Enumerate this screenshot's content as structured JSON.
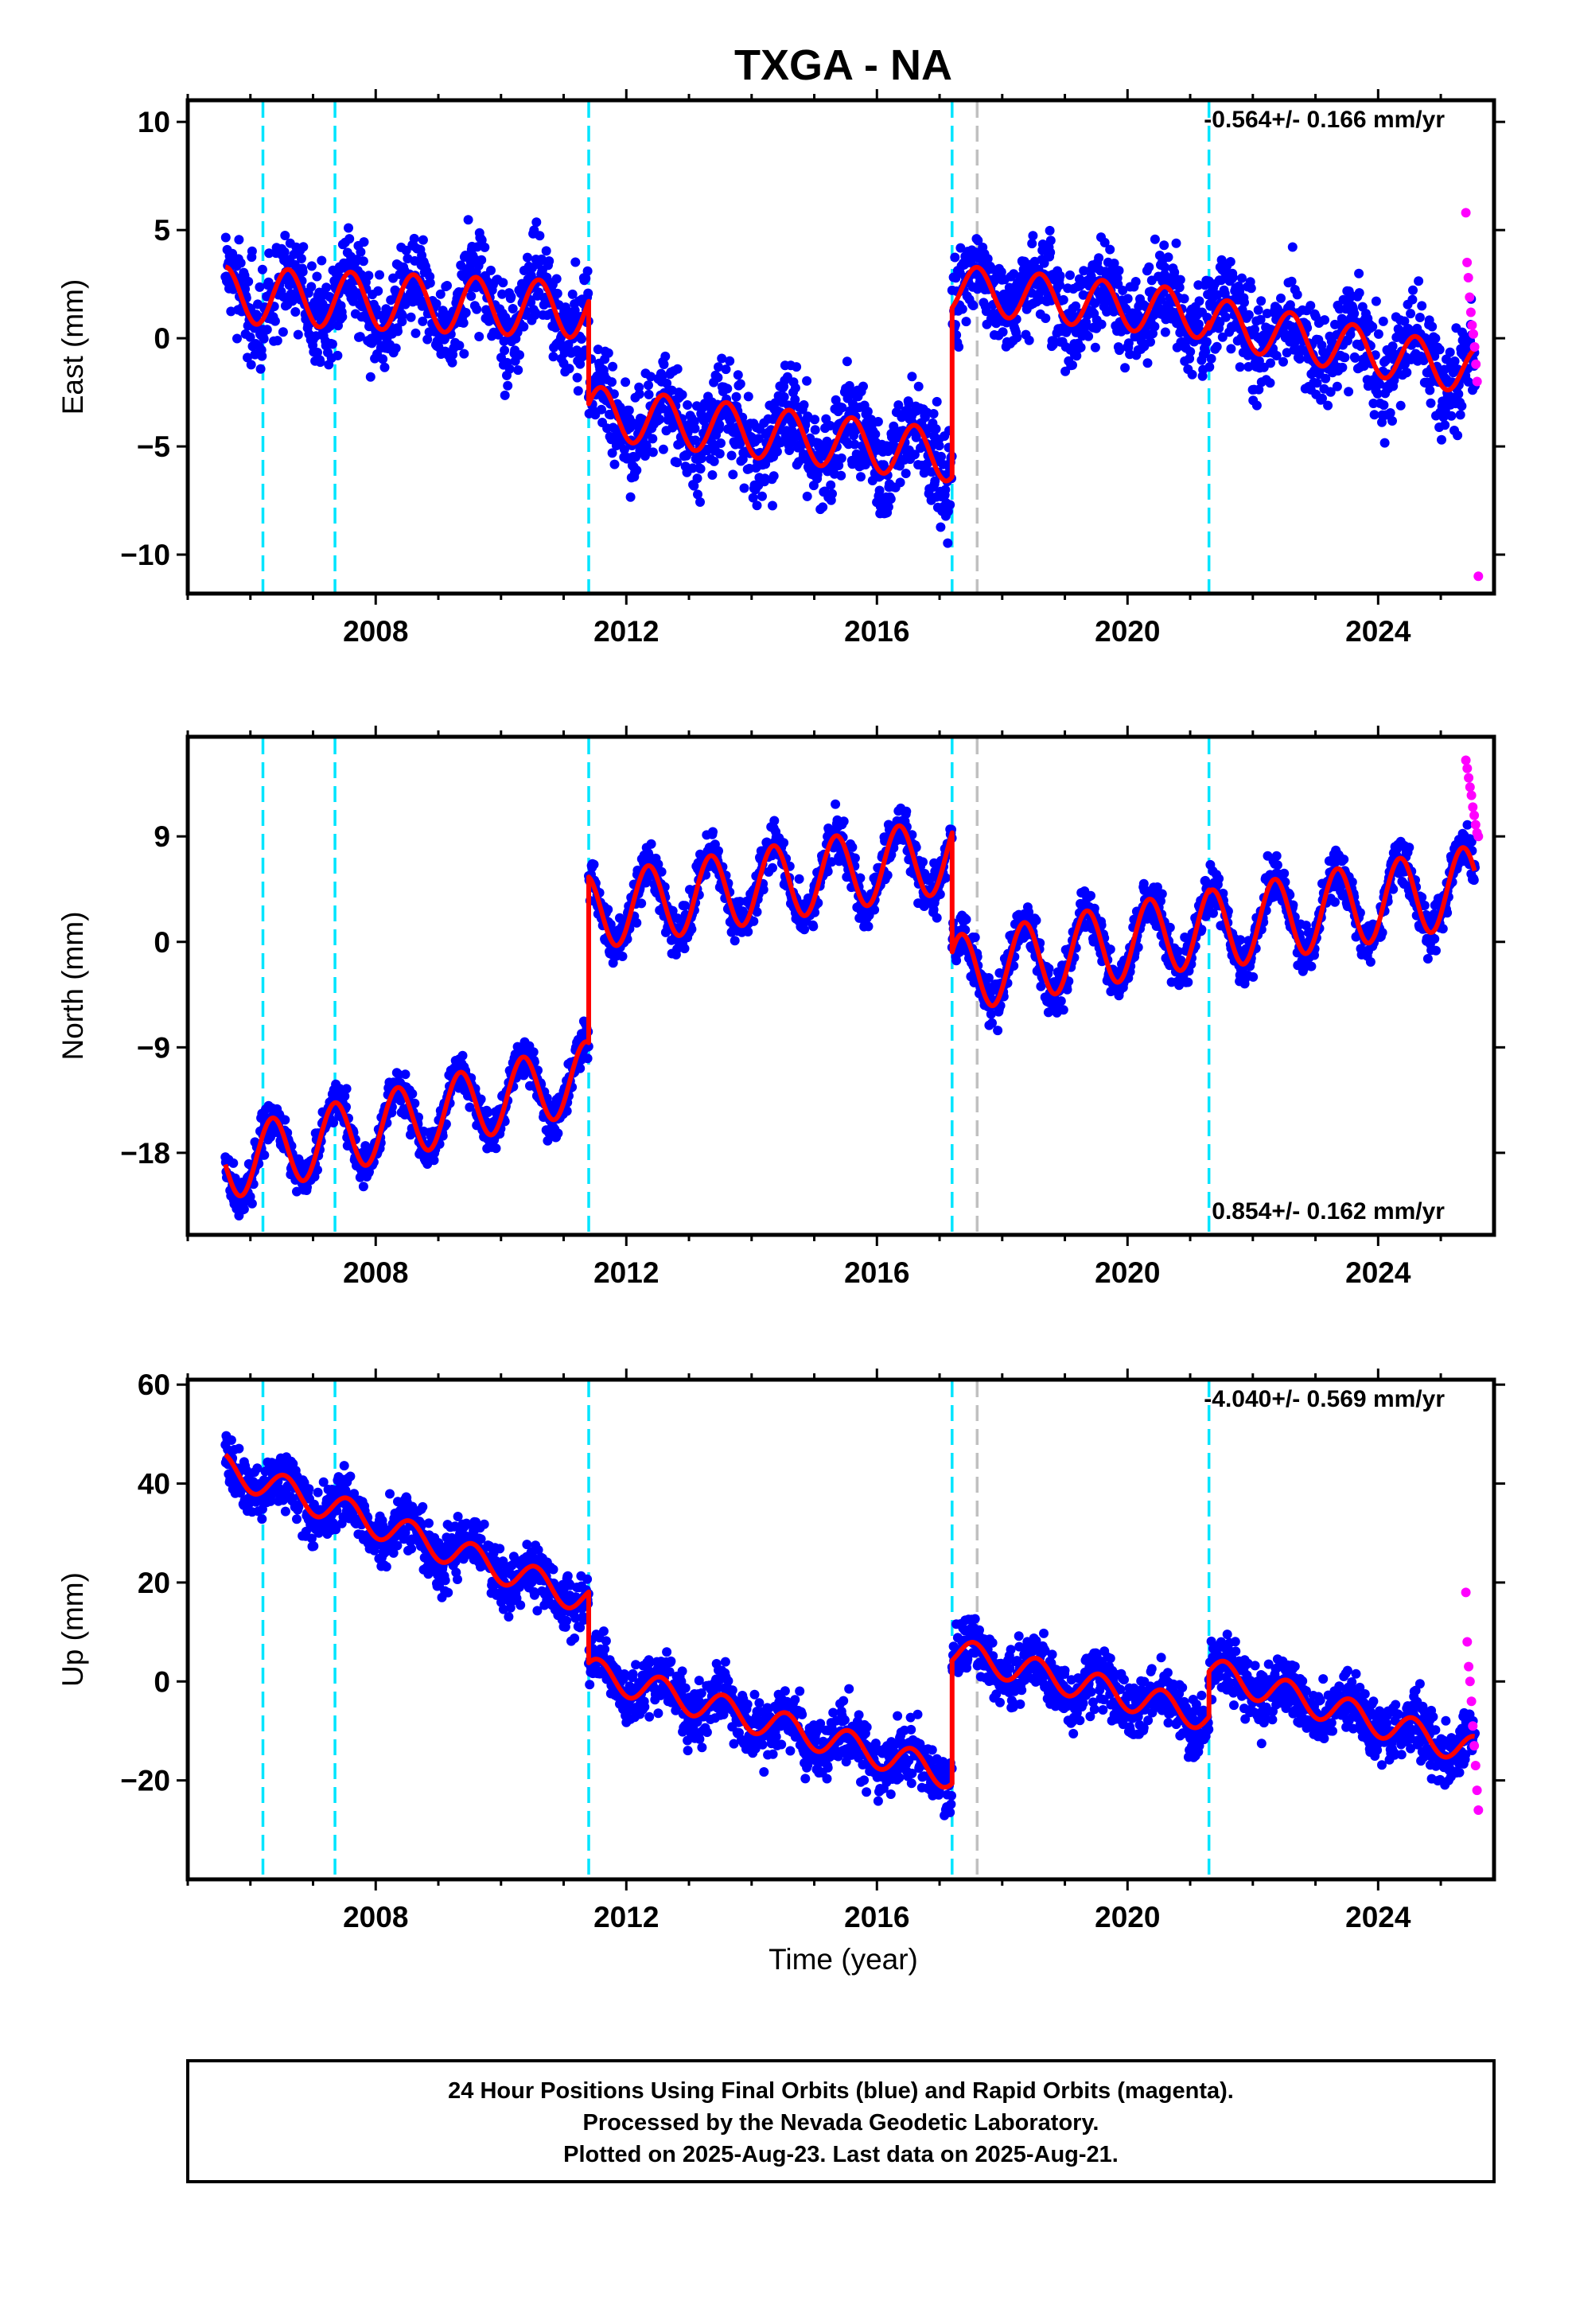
{
  "chart_data": {
    "type": "scatter",
    "title": "TXGA - NA",
    "xlabel": "Time (year)",
    "xlim": [
      2005.0,
      2025.85
    ],
    "x_ticks": [
      2008,
      2012,
      2016,
      2020,
      2024
    ],
    "x_tick_labels": [
      "2008",
      "2012",
      "2016",
      "2020",
      "2024"
    ],
    "colors": {
      "final": "#0000ff",
      "rapid": "#ff00ff",
      "model": "#ff0000",
      "event_offset": "#00e5ff",
      "equipment_change": "#c0c0c0"
    },
    "event_lines_cyan": [
      2006.2,
      2007.35,
      2011.4,
      2017.2,
      2021.3
    ],
    "event_lines_gray": [
      2017.6
    ],
    "panels": [
      {
        "ylabel": "East (mm)",
        "ylim": [
          -11.8,
          11.0
        ],
        "y_ticks": [
          10,
          5,
          0,
          -5,
          -10
        ],
        "y_tick_labels": [
          "10",
          "5",
          "0",
          "−5",
          "−10"
        ],
        "rate_text": "-0.564+/- 0.166 mm/yr",
        "rate_position": "top-right",
        "segments": [
          {
            "start": 2005.6,
            "end": 2011.4,
            "offset": 2.0,
            "trend": -0.12,
            "amp": 1.3,
            "phase": 0.35,
            "noise": 1.5
          },
          {
            "start": 2011.4,
            "end": 2017.2,
            "offset": -3.4,
            "trend": -0.35,
            "amp": 1.2,
            "phase": 0.35,
            "noise": 1.5
          },
          {
            "start": 2017.2,
            "end": 2021.3,
            "offset": 2.3,
            "trend": -0.3,
            "amp": 1.1,
            "phase": 0.35,
            "noise": 1.4
          },
          {
            "start": 2021.3,
            "end": 2025.55,
            "offset": 0.8,
            "trend": -0.55,
            "amp": 1.1,
            "phase": 0.35,
            "noise": 1.5
          }
        ],
        "rapid": {
          "start": 2025.4,
          "end": 2025.6,
          "values": [
            5.8,
            3.5,
            2.8,
            1.9,
            1.2,
            0.6,
            0.2,
            -0.4,
            -1.2,
            -2.0,
            -11.0
          ]
        }
      },
      {
        "ylabel": "North (mm)",
        "ylim": [
          -25.0,
          17.5
        ],
        "y_ticks": [
          9,
          0,
          -9,
          -18
        ],
        "y_tick_labels": [
          "9",
          "0",
          "−9",
          "−18"
        ],
        "rate_text": "0.854+/- 0.162 mm/yr",
        "rate_position": "bottom-right",
        "segments": [
          {
            "start": 2005.6,
            "end": 2011.4,
            "offset": -19.0,
            "trend": 1.3,
            "amp": 3.0,
            "phase": 0.1,
            "noise": 1.2
          },
          {
            "start": 2011.4,
            "end": 2017.2,
            "offset": 2.5,
            "trend": 0.85,
            "amp": 3.2,
            "phase": 0.1,
            "noise": 1.3
          },
          {
            "start": 2017.2,
            "end": 2021.3,
            "offset": -2.8,
            "trend": 1.0,
            "amp": 3.3,
            "phase": 0.1,
            "noise": 1.3
          },
          {
            "start": 2021.3,
            "end": 2025.55,
            "offset": 1.0,
            "trend": 0.9,
            "amp": 3.4,
            "phase": 0.1,
            "noise": 1.3
          }
        ],
        "rapid": {
          "start": 2025.4,
          "end": 2025.6,
          "values": [
            15.5,
            14.8,
            14.0,
            13.2,
            12.5,
            11.5,
            10.8,
            10.0,
            9.3,
            9.0
          ]
        }
      },
      {
        "ylabel": "Up (mm)",
        "ylim": [
          -40.0,
          61.0
        ],
        "y_ticks": [
          60,
          40,
          20,
          0,
          -20
        ],
        "y_tick_labels": [
          "60",
          "40",
          "20",
          "0",
          "−20"
        ],
        "rate_text": "-4.040+/- 0.569 mm/yr",
        "rate_position": "top-right",
        "segments": [
          {
            "start": 2005.6,
            "end": 2011.4,
            "offset": 43.0,
            "trend": -4.6,
            "amp": 3.0,
            "phase": 0.3,
            "noise": 4.0
          },
          {
            "start": 2011.4,
            "end": 2017.2,
            "offset": 2.0,
            "trend": -3.6,
            "amp": 3.0,
            "phase": 0.3,
            "noise": 4.0
          },
          {
            "start": 2017.2,
            "end": 2021.3,
            "offset": 6.0,
            "trend": -3.2,
            "amp": 3.0,
            "phase": 0.3,
            "noise": 3.8
          },
          {
            "start": 2021.3,
            "end": 2025.55,
            "offset": 2.0,
            "trend": -3.8,
            "amp": 3.0,
            "phase": 0.3,
            "noise": 4.0
          }
        ],
        "rapid": {
          "start": 2025.4,
          "end": 2025.6,
          "values": [
            18.0,
            8.0,
            3.0,
            0.0,
            -4.0,
            -9.0,
            -13.0,
            -17.0,
            -22.0,
            -26.0
          ]
        }
      }
    ],
    "footer_lines": [
      "24 Hour Positions Using Final Orbits (blue) and Rapid Orbits (magenta).",
      "Processed by the Nevada Geodetic Laboratory.",
      "Plotted on 2025-Aug-23. Last data on 2025-Aug-21."
    ]
  }
}
